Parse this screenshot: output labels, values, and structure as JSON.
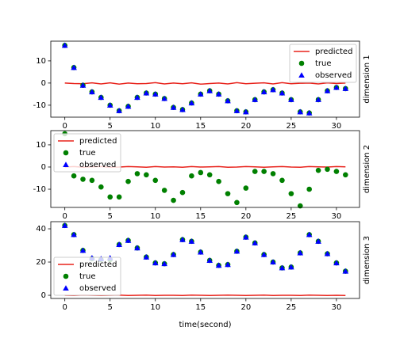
{
  "chart_data": [
    {
      "type": "scatter",
      "ylabel": "dimension 1",
      "legend": "upper right",
      "x": [
        0,
        1,
        2,
        3,
        4,
        5,
        6,
        7,
        8,
        9,
        10,
        11,
        12,
        13,
        14,
        15,
        16,
        17,
        18,
        19,
        20,
        21,
        22,
        23,
        24,
        25,
        26,
        27,
        28,
        29,
        30,
        31
      ],
      "xlim": [
        -1.55,
        32.55
      ],
      "xticks": [
        0,
        5,
        10,
        15,
        20,
        25,
        30
      ],
      "ylim": [
        -15.4,
        18.9
      ],
      "yticks": [
        -10,
        0,
        10
      ],
      "series": [
        {
          "name": "predicted",
          "style": "line",
          "color": "#e8231c",
          "values": [
            0,
            -0.2,
            -0.3,
            0.1,
            -0.4,
            0.1,
            -0.5,
            0,
            -0.3,
            -0.2,
            0.2,
            -0.4,
            0,
            -0.3,
            0.1,
            -0.5,
            -0.2,
            0,
            -0.4,
            0.2,
            -0.3,
            -0.1,
            0.1,
            -0.4,
            0.2,
            -0.3,
            -0.1,
            0,
            -0.4,
            0.1,
            -0.2,
            0
          ]
        },
        {
          "name": "true",
          "style": "circle",
          "color": "#008000",
          "values": [
            17,
            7,
            -1,
            -4,
            -6.5,
            -10,
            -12.5,
            -10.5,
            -6.5,
            -4.5,
            -5,
            -7,
            -11,
            -12,
            -9,
            -5,
            -3.5,
            -5,
            -8,
            -12.5,
            -13,
            -7.5,
            -4,
            -3,
            -4.5,
            -7.5,
            -13,
            -13.5,
            -7.5,
            -3.5,
            -2,
            -2.5
          ]
        },
        {
          "name": "observed",
          "style": "triangle",
          "color": "#0000ff",
          "values": [
            17,
            7,
            -1,
            -4,
            -6.5,
            -10,
            -12.5,
            -10.5,
            -6.5,
            -4.5,
            -5,
            -7,
            -11,
            -12,
            -9,
            -5,
            -3.5,
            -5,
            -8,
            -12.5,
            -13,
            -7.5,
            -4,
            -3,
            -4.5,
            -7.5,
            -13,
            -13.5,
            -7.5,
            -3.5,
            -2,
            -2.5
          ]
        }
      ]
    },
    {
      "type": "scatter",
      "ylabel": "dimension 2",
      "legend": "upper left",
      "x": [
        0,
        1,
        2,
        3,
        4,
        5,
        6,
        7,
        8,
        9,
        10,
        11,
        12,
        13,
        14,
        15,
        16,
        17,
        18,
        19,
        20,
        21,
        22,
        23,
        24,
        25,
        26,
        27,
        28,
        29,
        30,
        31
      ],
      "xlim": [
        -1.55,
        32.55
      ],
      "xticks": [
        0,
        5,
        10,
        15,
        20,
        25,
        30
      ],
      "ylim": [
        -18.2,
        16.4
      ],
      "yticks": [
        -10,
        0,
        10
      ],
      "series": [
        {
          "name": "predicted",
          "style": "line",
          "color": "#e8231c",
          "values": [
            0,
            0.2,
            -0.1,
            0.1,
            0.2,
            -0.1,
            0,
            0.2,
            0.1,
            -0.1,
            0.2,
            0,
            0.1,
            -0.1,
            0.2,
            0,
            0.1,
            0.2,
            -0.1,
            0,
            0.2,
            0.1,
            -0.1,
            0.1,
            0.2,
            0,
            -0.1,
            0.2,
            0.1,
            0,
            0.2,
            0.1
          ]
        },
        {
          "name": "true",
          "style": "circle",
          "color": "#008000",
          "values": [
            15,
            -4,
            -5.5,
            -6,
            -9,
            -13.5,
            -13.5,
            -6.5,
            -3,
            -3.5,
            -6,
            -10.5,
            -15,
            -11.5,
            -4,
            -2.5,
            -3.5,
            -6.5,
            -12,
            -16,
            -9.5,
            -2,
            -2,
            -3,
            -6,
            -12,
            -17.5,
            -10,
            -1.5,
            -1,
            -2,
            -3.5
          ]
        },
        {
          "name": "observed",
          "style": "triangle",
          "color": "#0000ff",
          "values": [
            null,
            null,
            null,
            null,
            null,
            null,
            null,
            null,
            null,
            null,
            null,
            null,
            null,
            null,
            null,
            null,
            null,
            null,
            null,
            null,
            null,
            null,
            null,
            null,
            null,
            null,
            null,
            null,
            null,
            null,
            null,
            null
          ]
        }
      ]
    },
    {
      "type": "scatter",
      "ylabel": "dimension 3",
      "xlabel": "time(second)",
      "legend": "lower left",
      "x": [
        0,
        1,
        2,
        3,
        4,
        5,
        6,
        7,
        8,
        9,
        10,
        11,
        12,
        13,
        14,
        15,
        16,
        17,
        18,
        19,
        20,
        21,
        22,
        23,
        24,
        25,
        26,
        27,
        28,
        29,
        30,
        31
      ],
      "xlim": [
        -1.55,
        32.55
      ],
      "xticks": [
        0,
        5,
        10,
        15,
        20,
        25,
        30
      ],
      "ylim": [
        -1.9,
        44.3
      ],
      "yticks": [
        0,
        20,
        40
      ],
      "series": [
        {
          "name": "predicted",
          "style": "line",
          "color": "#e8231c",
          "values": [
            0,
            -0.1,
            0.1,
            0,
            -0.1,
            0,
            0.1,
            -0.1,
            0,
            0.1,
            -0.1,
            0,
            0,
            -0.1,
            0.1,
            0,
            -0.1,
            0,
            0.1,
            0,
            -0.1,
            0,
            0.1,
            -0.1,
            0,
            0,
            -0.1,
            0.1,
            0,
            -0.1,
            0,
            -0.1
          ]
        },
        {
          "name": "true",
          "style": "circle",
          "color": "#008000",
          "values": [
            42,
            36.5,
            27,
            22,
            21.5,
            21.5,
            30.5,
            33,
            28.5,
            23,
            19.5,
            19,
            24.5,
            33.5,
            32.5,
            26,
            21,
            18,
            18.5,
            26.5,
            35,
            31.5,
            24.5,
            20,
            16.5,
            17,
            25.5,
            36.5,
            32.5,
            25,
            19.5,
            14.5
          ]
        },
        {
          "name": "observed",
          "style": "triangle",
          "color": "#0000ff",
          "values": [
            42,
            36.5,
            27,
            22.5,
            22,
            22.5,
            30.5,
            33,
            28.5,
            23,
            19.5,
            19,
            24.5,
            33.5,
            32.5,
            26,
            21,
            18,
            18.5,
            26.5,
            35,
            31.5,
            24.5,
            20,
            16.5,
            17,
            25.5,
            36.5,
            32.5,
            25,
            19.5,
            14.5
          ]
        }
      ]
    }
  ]
}
